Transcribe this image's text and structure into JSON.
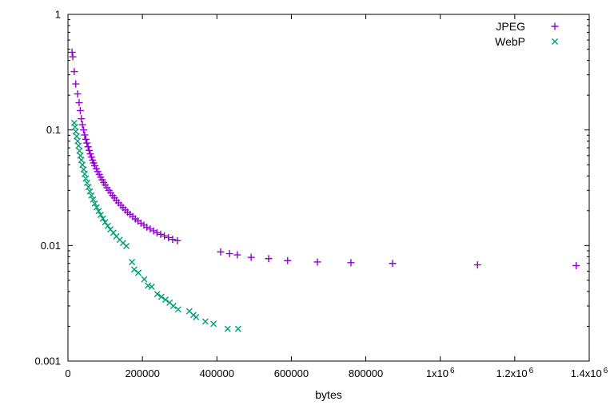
{
  "chart_data": {
    "type": "scatter",
    "title": "",
    "xlabel": "bytes",
    "ylabel": "",
    "grid": false,
    "legend_position": "top-right-inside",
    "x_axis": {
      "min": 0,
      "max": 1400000,
      "ticks": [
        {
          "v": 0,
          "label": "0"
        },
        {
          "v": 200000,
          "label": "200000"
        },
        {
          "v": 400000,
          "label": "400000"
        },
        {
          "v": 600000,
          "label": "600000"
        },
        {
          "v": 800000,
          "label": "800000"
        },
        {
          "v": 1000000,
          "label": "1x10^6"
        },
        {
          "v": 1200000,
          "label": "1.2x10^6"
        },
        {
          "v": 1400000,
          "label": "1.4x10^6"
        }
      ]
    },
    "y_axis": {
      "scale": "log",
      "min": 0.001,
      "max": 1,
      "ticks": [
        {
          "v": 1,
          "label": "1"
        },
        {
          "v": 0.1,
          "label": "0.1"
        },
        {
          "v": 0.01,
          "label": "0.01"
        },
        {
          "v": 0.001,
          "label": "0.001"
        }
      ]
    },
    "series": [
      {
        "name": "JPEG",
        "marker": "plus",
        "color": "#9400d3",
        "points": [
          [
            11000,
            0.47
          ],
          [
            13000,
            0.43
          ],
          [
            17000,
            0.32
          ],
          [
            21000,
            0.25
          ],
          [
            26000,
            0.205
          ],
          [
            30000,
            0.172
          ],
          [
            33000,
            0.147
          ],
          [
            36000,
            0.125
          ],
          [
            39000,
            0.111
          ],
          [
            42000,
            0.1
          ],
          [
            45000,
            0.0905
          ],
          [
            48000,
            0.083
          ],
          [
            51000,
            0.077
          ],
          [
            54000,
            0.0715
          ],
          [
            57000,
            0.0665
          ],
          [
            60000,
            0.062
          ],
          [
            63000,
            0.0582
          ],
          [
            66000,
            0.0548
          ],
          [
            69000,
            0.0518
          ],
          [
            72000,
            0.049
          ],
          [
            76000,
            0.0462
          ],
          [
            80000,
            0.0436
          ],
          [
            84000,
            0.0412
          ],
          [
            88000,
            0.039
          ],
          [
            92000,
            0.037
          ],
          [
            96000,
            0.0351
          ],
          [
            100000,
            0.0334
          ],
          [
            105000,
            0.0316
          ],
          [
            110000,
            0.03
          ],
          [
            115000,
            0.0285
          ],
          [
            120000,
            0.0271
          ],
          [
            125000,
            0.0258
          ],
          [
            130000,
            0.0246
          ],
          [
            136000,
            0.0234
          ],
          [
            142000,
            0.0223
          ],
          [
            148000,
            0.0213
          ],
          [
            154000,
            0.0203
          ],
          [
            160000,
            0.0194
          ],
          [
            167000,
            0.0186
          ],
          [
            174000,
            0.0178
          ],
          [
            181000,
            0.017
          ],
          [
            188000,
            0.0163
          ],
          [
            196000,
            0.0156
          ],
          [
            204000,
            0.015
          ],
          [
            212000,
            0.0144
          ],
          [
            221000,
            0.0139
          ],
          [
            230000,
            0.0134
          ],
          [
            239000,
            0.0129
          ],
          [
            249000,
            0.0125
          ],
          [
            259000,
            0.0121
          ],
          [
            270000,
            0.0117
          ],
          [
            281000,
            0.0113
          ],
          [
            294000,
            0.011
          ],
          [
            410000,
            0.0088
          ],
          [
            434000,
            0.0085
          ],
          [
            455000,
            0.0083
          ],
          [
            492000,
            0.0079
          ],
          [
            539000,
            0.0077
          ],
          [
            590000,
            0.0074
          ],
          [
            670000,
            0.0072
          ],
          [
            760000,
            0.0071
          ],
          [
            872000,
            0.007
          ],
          [
            1100000,
            0.0068
          ],
          [
            1365000,
            0.0067
          ]
        ]
      },
      {
        "name": "WebP",
        "marker": "cross",
        "color": "#009e73",
        "points": [
          [
            17000,
            0.115
          ],
          [
            19000,
            0.106
          ],
          [
            21000,
            0.097
          ],
          [
            23500,
            0.088
          ],
          [
            26000,
            0.08
          ],
          [
            28500,
            0.073
          ],
          [
            31000,
            0.066
          ],
          [
            33500,
            0.06
          ],
          [
            36000,
            0.055
          ],
          [
            39000,
            0.05
          ],
          [
            42000,
            0.0455
          ],
          [
            45000,
            0.0415
          ],
          [
            48000,
            0.038
          ],
          [
            51500,
            0.0348
          ],
          [
            55000,
            0.032
          ],
          [
            59000,
            0.0294
          ],
          [
            63000,
            0.0271
          ],
          [
            67500,
            0.025
          ],
          [
            72000,
            0.0231
          ],
          [
            77000,
            0.0214
          ],
          [
            82500,
            0.0198
          ],
          [
            88000,
            0.0184
          ],
          [
            94000,
            0.0171
          ],
          [
            100000,
            0.0159
          ],
          [
            107000,
            0.0148
          ],
          [
            114000,
            0.0138
          ],
          [
            122000,
            0.0129
          ],
          [
            130000,
            0.012
          ],
          [
            139000,
            0.0112
          ],
          [
            148000,
            0.0105
          ],
          [
            157000,
            0.0099
          ],
          [
            172000,
            0.0072
          ],
          [
            178000,
            0.0062
          ],
          [
            189000,
            0.0058
          ],
          [
            205000,
            0.0051
          ],
          [
            215000,
            0.0045
          ],
          [
            225000,
            0.0044
          ],
          [
            240000,
            0.0038
          ],
          [
            251000,
            0.0036
          ],
          [
            262000,
            0.0034
          ],
          [
            273000,
            0.0032
          ],
          [
            283000,
            0.003
          ],
          [
            296000,
            0.0028
          ],
          [
            326000,
            0.0027
          ],
          [
            337000,
            0.0025
          ],
          [
            344000,
            0.0024
          ],
          [
            369000,
            0.0022
          ],
          [
            391000,
            0.0021
          ],
          [
            429000,
            0.0019
          ],
          [
            457000,
            0.0019
          ]
        ]
      }
    ]
  }
}
